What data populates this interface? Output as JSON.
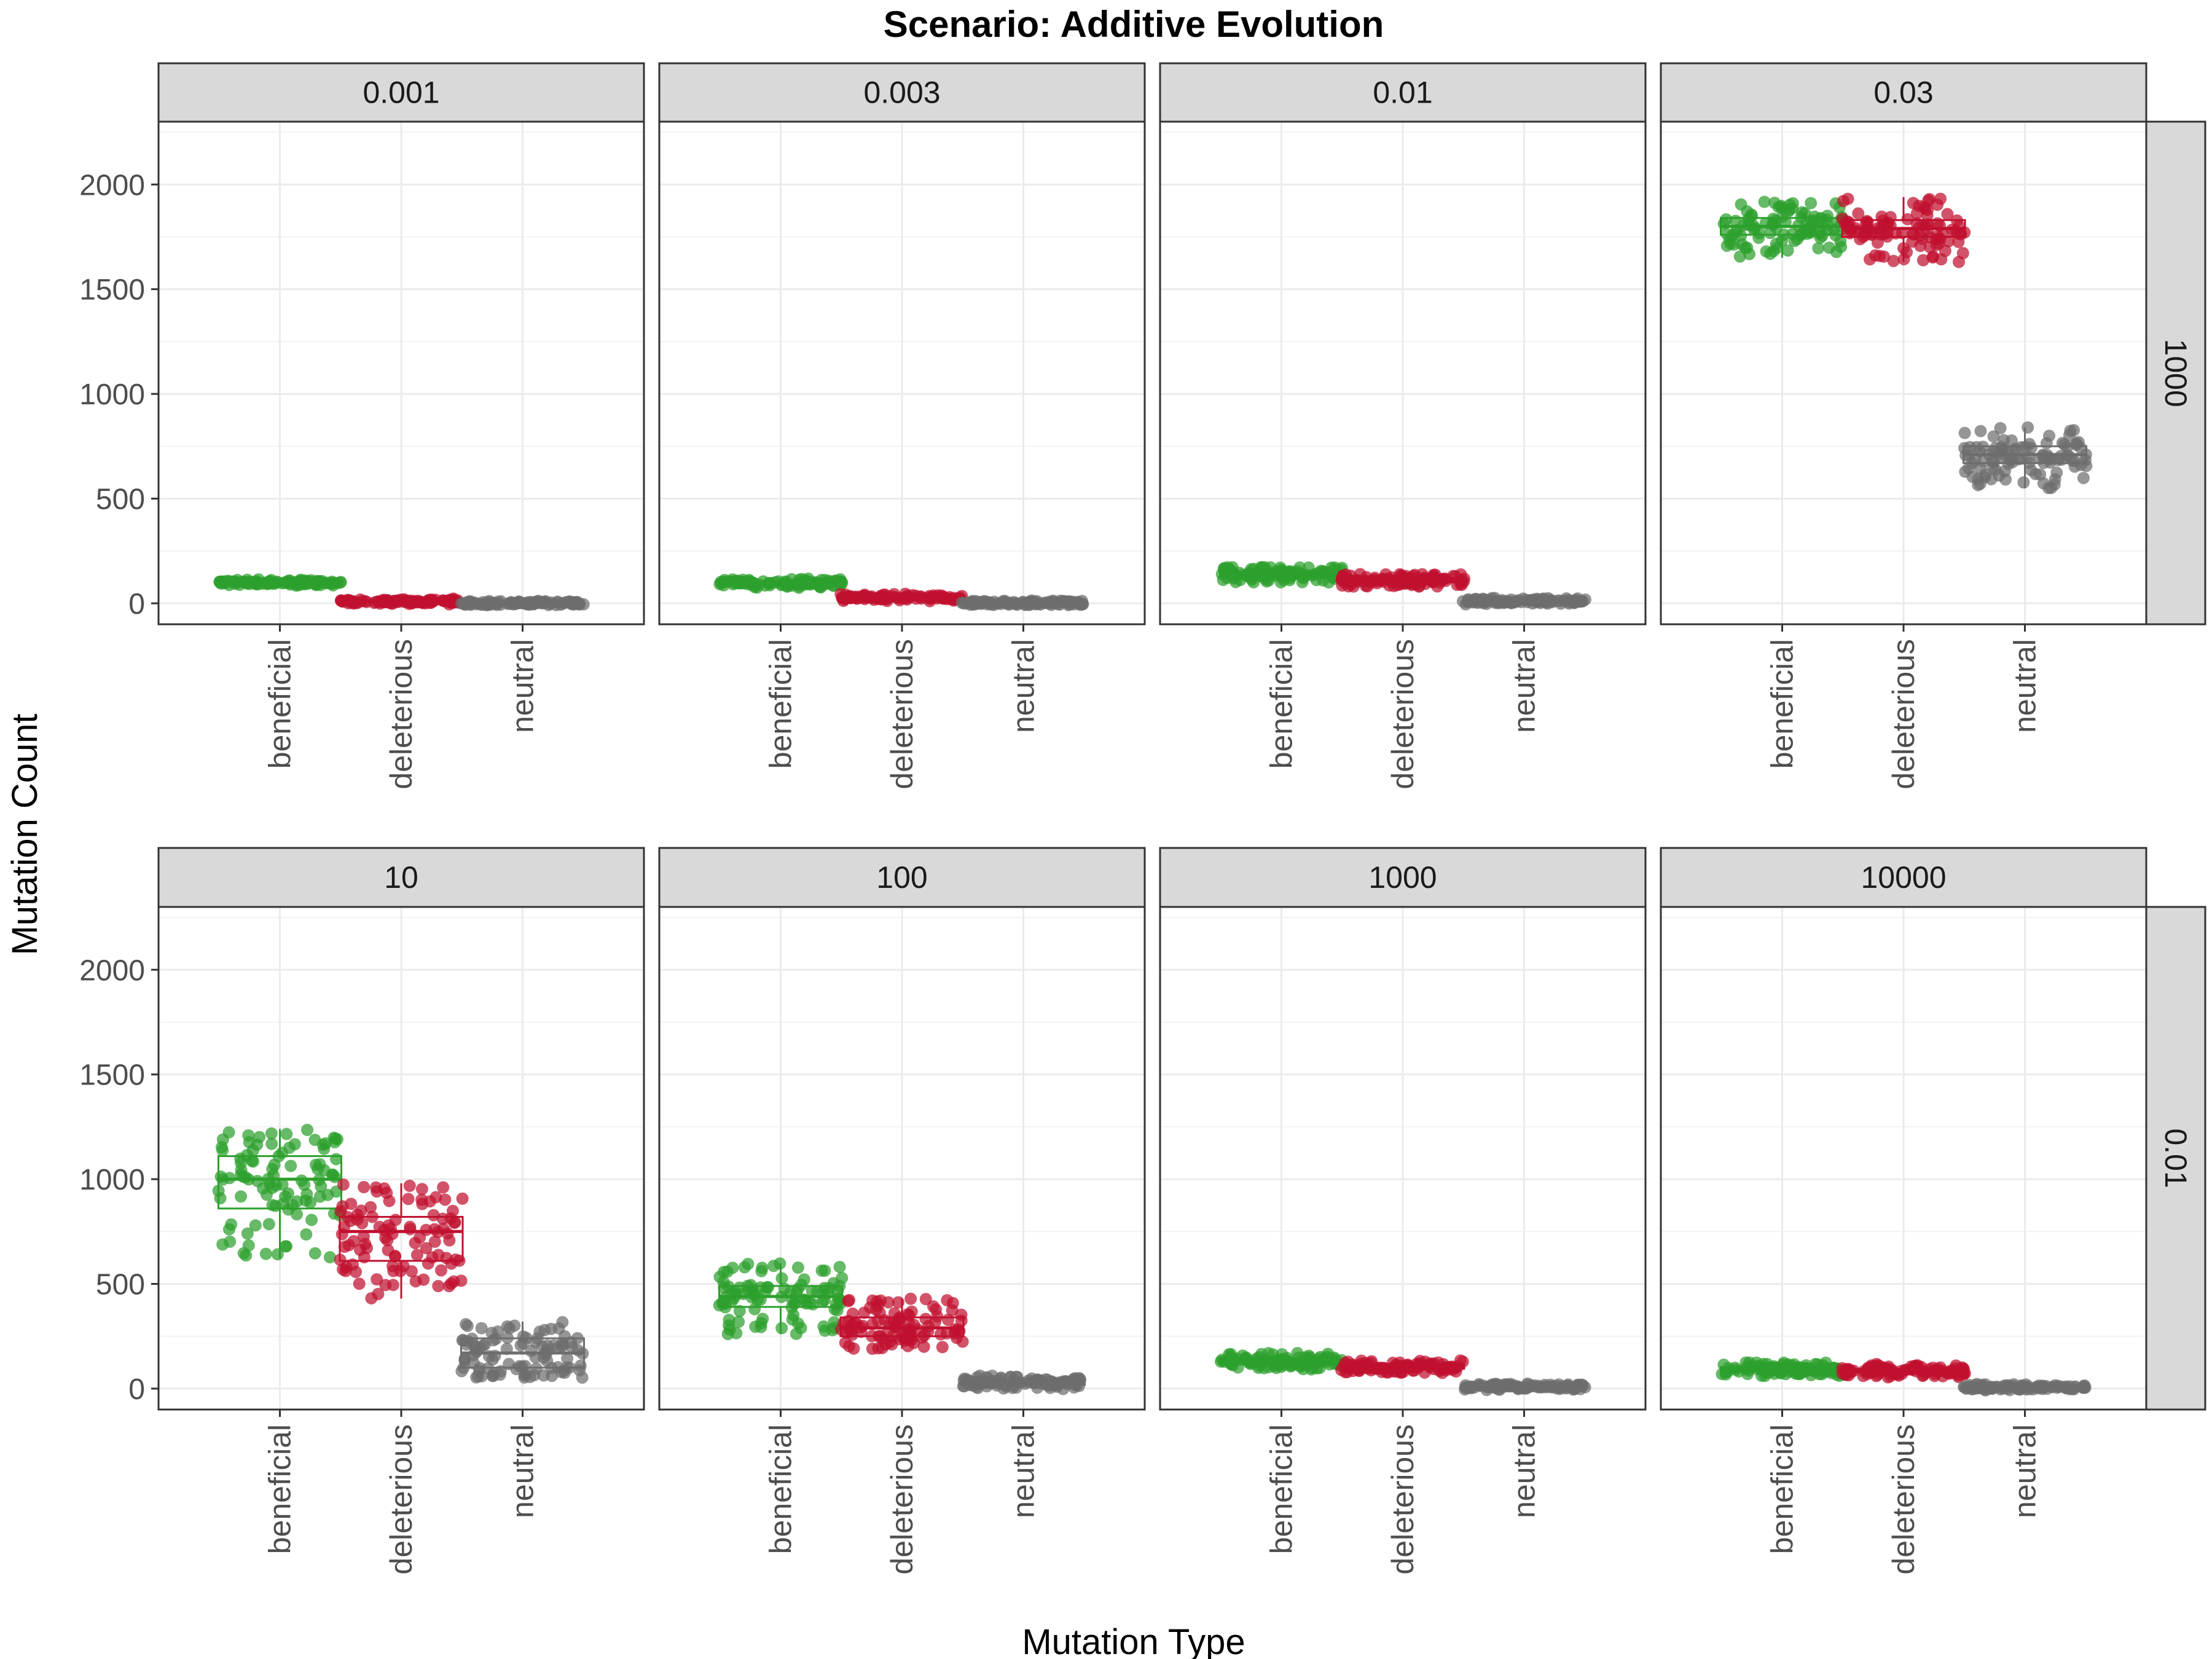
{
  "chart_data": {
    "type": "boxplot+jitter",
    "title": "Scenario: Additive Evolution",
    "xlabel": "Mutation Type",
    "ylabel": "Mutation Count",
    "ylim": [
      -100,
      2300
    ],
    "yticks": [
      0,
      500,
      1000,
      1500,
      2000
    ],
    "categories": [
      "beneficial",
      "deleterious",
      "neutral"
    ],
    "colors": {
      "beneficial": "#2ca02c",
      "deleterious": "#c0102f",
      "neutral": "#6e6e6e"
    },
    "grid": true,
    "legend": "none",
    "points_per_box": 100,
    "rows": [
      {
        "label": "1000",
        "panels": [
          {
            "label": "0.001",
            "boxes": [
              {
                "category": "beneficial",
                "min": 92,
                "q1": 97,
                "median": 100,
                "q3": 103,
                "max": 108
              },
              {
                "category": "deleterious",
                "min": 4,
                "q1": 7,
                "median": 9,
                "q3": 11,
                "max": 14
              },
              {
                "category": "neutral",
                "min": 0,
                "q1": 0,
                "median": 1,
                "q3": 1,
                "max": 3
              }
            ]
          },
          {
            "label": "0.003",
            "boxes": [
              {
                "category": "beneficial",
                "min": 80,
                "q1": 90,
                "median": 96,
                "q3": 102,
                "max": 112
              },
              {
                "category": "deleterious",
                "min": 18,
                "q1": 24,
                "median": 28,
                "q3": 32,
                "max": 38
              },
              {
                "category": "neutral",
                "min": 0,
                "q1": 1,
                "median": 2,
                "q3": 3,
                "max": 5
              }
            ]
          },
          {
            "label": "0.01",
            "boxes": [
              {
                "category": "beneficial",
                "min": 100,
                "q1": 125,
                "median": 135,
                "q3": 148,
                "max": 175
              },
              {
                "category": "deleterious",
                "min": 80,
                "q1": 100,
                "median": 110,
                "q3": 120,
                "max": 140
              },
              {
                "category": "neutral",
                "min": 2,
                "q1": 7,
                "median": 10,
                "q3": 13,
                "max": 20
              }
            ]
          },
          {
            "label": "0.03",
            "boxes": [
              {
                "category": "beneficial",
                "min": 1650,
                "q1": 1760,
                "median": 1800,
                "q3": 1840,
                "max": 1920
              },
              {
                "category": "deleterious",
                "min": 1630,
                "q1": 1750,
                "median": 1790,
                "q3": 1830,
                "max": 1940
              },
              {
                "category": "neutral",
                "min": 550,
                "q1": 670,
                "median": 710,
                "q3": 750,
                "max": 840
              }
            ]
          }
        ]
      },
      {
        "label": "0.01",
        "panels": [
          {
            "label": "10",
            "boxes": [
              {
                "category": "beneficial",
                "min": 620,
                "q1": 860,
                "median": 1000,
                "q3": 1110,
                "max": 1240
              },
              {
                "category": "deleterious",
                "min": 430,
                "q1": 610,
                "median": 750,
                "q3": 820,
                "max": 980
              },
              {
                "category": "neutral",
                "min": 50,
                "q1": 100,
                "median": 170,
                "q3": 240,
                "max": 320
              }
            ]
          },
          {
            "label": "100",
            "boxes": [
              {
                "category": "beneficial",
                "min": 260,
                "q1": 390,
                "median": 440,
                "q3": 490,
                "max": 600
              },
              {
                "category": "deleterious",
                "min": 190,
                "q1": 250,
                "median": 290,
                "q3": 340,
                "max": 430
              },
              {
                "category": "neutral",
                "min": 5,
                "q1": 18,
                "median": 25,
                "q3": 35,
                "max": 55
              }
            ]
          },
          {
            "label": "1000",
            "boxes": [
              {
                "category": "beneficial",
                "min": 90,
                "q1": 115,
                "median": 128,
                "q3": 140,
                "max": 170
              },
              {
                "category": "deleterious",
                "min": 75,
                "q1": 95,
                "median": 105,
                "q3": 115,
                "max": 135
              },
              {
                "category": "neutral",
                "min": 0,
                "q1": 5,
                "median": 8,
                "q3": 11,
                "max": 18
              }
            ]
          },
          {
            "label": "10000",
            "boxes": [
              {
                "category": "beneficial",
                "min": 60,
                "q1": 82,
                "median": 92,
                "q3": 102,
                "max": 125
              },
              {
                "category": "deleterious",
                "min": 60,
                "q1": 78,
                "median": 86,
                "q3": 94,
                "max": 110
              },
              {
                "category": "neutral",
                "min": 0,
                "q1": 3,
                "median": 5,
                "q3": 8,
                "max": 14
              }
            ]
          }
        ]
      }
    ]
  }
}
